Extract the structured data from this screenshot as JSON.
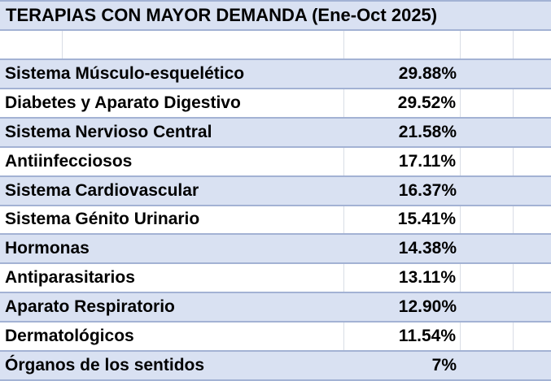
{
  "title": "TERAPIAS CON MAYOR DEMANDA (Ene-Oct 2025)",
  "table": {
    "period": "Ene-Oct 2025",
    "rows": [
      {
        "label": "Sistema Músculo-esquelético",
        "value": "29.88%"
      },
      {
        "label": "Diabetes y Aparato Digestivo",
        "value": "29.52%"
      },
      {
        "label": "Sistema Nervioso Central",
        "value": "21.58%"
      },
      {
        "label": "Antiinfecciosos",
        "value": "17.11%"
      },
      {
        "label": "Sistema Cardiovascular",
        "value": "16.37%"
      },
      {
        "label": "Sistema Génito Urinario",
        "value": "15.41%"
      },
      {
        "label": "Hormonas",
        "value": "14.38%"
      },
      {
        "label": "Antiparasitarios",
        "value": "13.11%"
      },
      {
        "label": "Aparato Respiratorio",
        "value": "12.90%"
      },
      {
        "label": "Dermatológicos",
        "value": "11.54%"
      },
      {
        "label": "Órganos de los sentidos",
        "value": "7%"
      }
    ]
  },
  "chart_data": {
    "type": "table",
    "title": "TERAPIAS CON MAYOR DEMANDA (Ene-Oct 2025)",
    "categories": [
      "Sistema Músculo-esquelético",
      "Diabetes y Aparato Digestivo",
      "Sistema Nervioso Central",
      "Antiinfecciosos",
      "Sistema Cardiovascular",
      "Sistema Génito Urinario",
      "Hormonas",
      "Antiparasitarios",
      "Aparato Respiratorio",
      "Dermatológicos",
      "Órganos de los sentidos"
    ],
    "values": [
      29.88,
      29.52,
      21.58,
      17.11,
      16.37,
      15.41,
      14.38,
      13.11,
      12.9,
      11.54,
      7
    ]
  },
  "colors": {
    "band_fill": "#d9e1f2",
    "row_border": "#a3b2d4",
    "gridline": "#d9dde6",
    "text": "#000000",
    "background": "#ffffff"
  }
}
